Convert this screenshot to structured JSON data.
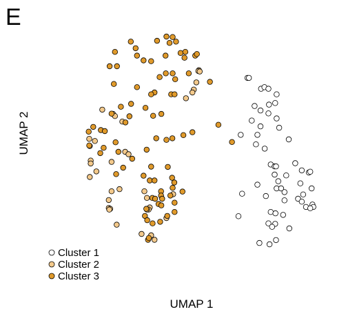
{
  "panel_label": "E",
  "chart_data": {
    "type": "scatter",
    "xlabel": "UMAP 1",
    "ylabel": "UMAP 2",
    "xlim": [
      0,
      100
    ],
    "ylim": [
      0,
      100
    ],
    "grid": false,
    "legend_position": "bottom-left",
    "series": [
      {
        "name": "Cluster 1",
        "color": "#ffffff",
        "points": [
          [
            69.3,
            77.9
          ],
          [
            69.8,
            77.9
          ],
          [
            74.1,
            73.8
          ],
          [
            75.3,
            74.4
          ],
          [
            76.7,
            73.8
          ],
          [
            79.6,
            71.7
          ],
          [
            71.8,
            67.3
          ],
          [
            79.1,
            68.4
          ],
          [
            76.9,
            67.8
          ],
          [
            73.9,
            65.6
          ],
          [
            76.7,
            64.5
          ],
          [
            70.8,
            61.8
          ],
          [
            79.6,
            62.6
          ],
          [
            73.9,
            59.6
          ],
          [
            80.5,
            59.1
          ],
          [
            66.9,
            56.4
          ],
          [
            72.8,
            56.4
          ],
          [
            72.3,
            52.8
          ],
          [
            83.9,
            54.7
          ],
          [
            75.4,
            51.2
          ],
          [
            77.5,
            45.2
          ],
          [
            78.9,
            44.5
          ],
          [
            79.4,
            44.5
          ],
          [
            86.2,
            45.7
          ],
          [
            88.5,
            43.0
          ],
          [
            91.0,
            42.2
          ],
          [
            91.5,
            42.5
          ],
          [
            83.0,
            41.1
          ],
          [
            78.9,
            41.4
          ],
          [
            80.2,
            38.9
          ],
          [
            72.8,
            37.6
          ],
          [
            79.6,
            36.2
          ],
          [
            88.0,
            38.1
          ],
          [
            81.2,
            36.2
          ],
          [
            82.4,
            34.8
          ],
          [
            92.0,
            36.2
          ],
          [
            67.4,
            34.2
          ],
          [
            75.8,
            33.3
          ],
          [
            89.0,
            33.9
          ],
          [
            87.2,
            32.3
          ],
          [
            82.4,
            31.7
          ],
          [
            88.5,
            31.2
          ],
          [
            92.3,
            30.1
          ],
          [
            92.6,
            29.2
          ],
          [
            90.0,
            29.2
          ],
          [
            91.5,
            28.7
          ],
          [
            77.5,
            27.3
          ],
          [
            79.2,
            26.8
          ],
          [
            81.9,
            26.2
          ],
          [
            66.1,
            25.7
          ],
          [
            76.7,
            23.0
          ],
          [
            79.1,
            22.8
          ],
          [
            78.0,
            21.7
          ],
          [
            84.1,
            21.1
          ],
          [
            79.4,
            16.7
          ],
          [
            73.5,
            15.6
          ],
          [
            77.1,
            15.1
          ]
        ]
      },
      {
        "name": "Cluster 2",
        "color": "#f3c98b",
        "points": [
          [
            52.1,
            80.8
          ],
          [
            51.9,
            80.5
          ],
          [
            52.4,
            80.3
          ],
          [
            51.2,
            76.2
          ],
          [
            50.3,
            73.5
          ],
          [
            47.5,
            70.2
          ],
          [
            17.9,
            65.9
          ],
          [
            21.7,
            64.3
          ],
          [
            22.4,
            63.5
          ],
          [
            49.8,
            72.4
          ],
          [
            25.0,
            61.4
          ],
          [
            13.3,
            54.9
          ],
          [
            15.3,
            54.1
          ],
          [
            13.5,
            52.2
          ],
          [
            26.0,
            50.0
          ],
          [
            27.2,
            49.1
          ],
          [
            13.8,
            46.7
          ],
          [
            21.2,
            46.2
          ],
          [
            13.8,
            45.6
          ],
          [
            15.8,
            42.6
          ],
          [
            13.5,
            40.5
          ],
          [
            24.0,
            35.9
          ],
          [
            32.8,
            35.1
          ],
          [
            21.2,
            35.1
          ],
          [
            43.0,
            34.0
          ],
          [
            33.7,
            32.6
          ],
          [
            20.2,
            31.8
          ],
          [
            34.7,
            29.0
          ],
          [
            20.2,
            28.8
          ],
          [
            20.7,
            28.5
          ],
          [
            34.3,
            28.2
          ],
          [
            33.7,
            28.2
          ],
          [
            20.4,
            28.2
          ],
          [
            40.6,
            25.0
          ],
          [
            23.0,
            22.5
          ],
          [
            31.8,
            19.0
          ],
          [
            35.2,
            18.5
          ],
          [
            36.4,
            16.8
          ]
        ]
      },
      {
        "name": "Cluster 3",
        "color": "#e09a2b",
        "points": [
          [
            28.0,
            91.6
          ],
          [
            37.3,
            91.9
          ],
          [
            40.6,
            93.5
          ],
          [
            42.8,
            93.3
          ],
          [
            41.7,
            91.1
          ],
          [
            44.0,
            91.6
          ],
          [
            29.7,
            89.1
          ],
          [
            45.6,
            87.3
          ],
          [
            47.3,
            87.7
          ],
          [
            50.8,
            86.3
          ],
          [
            51.4,
            86.9
          ],
          [
            22.4,
            87.7
          ],
          [
            30.2,
            86.3
          ],
          [
            40.3,
            86.3
          ],
          [
            47.0,
            85.5
          ],
          [
            32.5,
            84.5
          ],
          [
            35.2,
            84.2
          ],
          [
            20.5,
            82.3
          ],
          [
            23.1,
            82.3
          ],
          [
            40.4,
            79.6
          ],
          [
            42.8,
            79.6
          ],
          [
            48.5,
            79.6
          ],
          [
            43.7,
            77.4
          ],
          [
            38.2,
            78.2
          ],
          [
            22.0,
            75.6
          ],
          [
            30.2,
            74.4
          ],
          [
            42.3,
            71.7
          ],
          [
            43.5,
            71.7
          ],
          [
            36.4,
            72.4
          ],
          [
            35.2,
            71.7
          ],
          [
            28.1,
            68.1
          ],
          [
            24.5,
            67.0
          ],
          [
            33.2,
            66.6
          ],
          [
            21.2,
            64.4
          ],
          [
            35.9,
            63.6
          ],
          [
            38.8,
            64.3
          ],
          [
            27.5,
            63.4
          ],
          [
            26.1,
            61.1
          ],
          [
            14.7,
            59.4
          ],
          [
            17.4,
            58.2
          ],
          [
            13.1,
            57.6
          ],
          [
            18.8,
            57.8
          ],
          [
            49.8,
            57.4
          ],
          [
            46.6,
            56.3
          ],
          [
            42.7,
            55.1
          ],
          [
            37.0,
            55.1
          ],
          [
            40.6,
            54.5
          ],
          [
            22.6,
            53.6
          ],
          [
            18.4,
            51.5
          ],
          [
            33.6,
            50.8
          ],
          [
            23.6,
            50.0
          ],
          [
            17.2,
            49.5
          ],
          [
            13.3,
            52.4
          ],
          [
            28.5,
            47.4
          ],
          [
            25.3,
            44.0
          ],
          [
            35.2,
            44.4
          ],
          [
            41.1,
            44.3
          ],
          [
            22.8,
            41.6
          ],
          [
            32.5,
            41.0
          ],
          [
            34.7,
            39.2
          ],
          [
            42.6,
            40.2
          ],
          [
            43.4,
            38.4
          ],
          [
            36.4,
            39.2
          ],
          [
            42.8,
            36.4
          ],
          [
            38.7,
            35.1
          ],
          [
            38.7,
            33.5
          ],
          [
            42.0,
            33.5
          ],
          [
            37.8,
            30.3
          ],
          [
            38.8,
            29.8
          ],
          [
            39.1,
            32.3
          ],
          [
            46.3,
            35.0
          ],
          [
            35.6,
            32.6
          ],
          [
            36.6,
            32.3
          ],
          [
            33.5,
            28.5
          ],
          [
            43.5,
            30.8
          ],
          [
            33.0,
            25.8
          ],
          [
            40.9,
            25.8
          ],
          [
            43.5,
            27.3
          ],
          [
            33.8,
            24.2
          ],
          [
            38.4,
            23.6
          ],
          [
            35.7,
            23.0
          ],
          [
            34.1,
            16.8
          ],
          [
            34.4,
            17.5
          ],
          [
            59.0,
            60.2
          ],
          [
            63.8,
            53.7
          ],
          [
            56.0,
            76.4
          ]
        ]
      }
    ]
  }
}
